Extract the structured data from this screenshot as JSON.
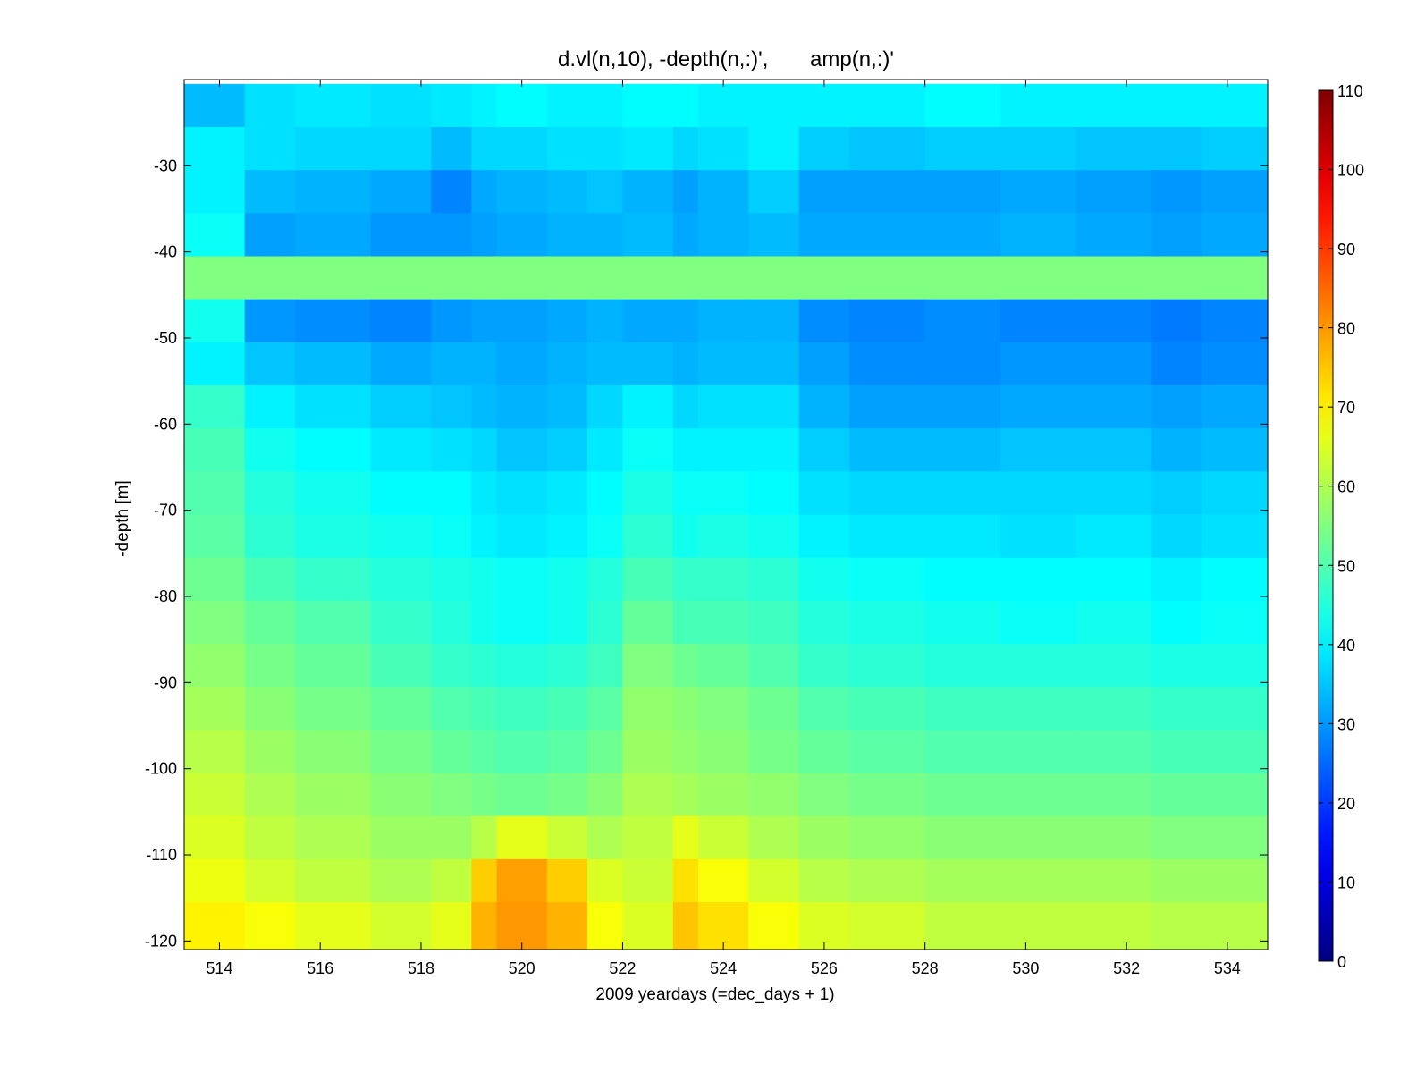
{
  "chart_data": {
    "type": "heatmap",
    "title": "d.vl(n,10), -depth(n,:)',       amp(n,:)'",
    "xlabel": "2009 yeardays (=dec_days + 1)",
    "ylabel": "-depth [m]",
    "xlim": [
      513.3,
      534.8
    ],
    "ylim": [
      -121,
      -20
    ],
    "x_ticks": [
      514,
      516,
      518,
      520,
      522,
      524,
      526,
      528,
      530,
      532,
      534
    ],
    "y_ticks": [
      -30,
      -40,
      -50,
      -60,
      -70,
      -80,
      -90,
      -100,
      -110,
      -120
    ],
    "colorbar": {
      "colormap": "jet",
      "range": [
        0,
        110
      ],
      "ticks": [
        0,
        10,
        20,
        30,
        40,
        50,
        60,
        70,
        80,
        90,
        100,
        110
      ]
    },
    "bins": {
      "top_depths": [
        -20.5,
        -25.5,
        -30.5,
        -35.5,
        -40.5,
        -45.5,
        -50.5,
        -55.5,
        -60.5,
        -65.5,
        -70.5,
        -75.5,
        -80.5,
        -85.5,
        -90.5,
        -95.5,
        -100.5,
        -105.5,
        -110.5,
        -115.5
      ],
      "bottom_depth": -121
    },
    "x_segments": [
      513.3,
      514.5,
      515.5,
      517,
      518.2,
      519,
      519.5,
      520.5,
      521.3,
      522,
      523,
      523.5,
      524.5,
      525.5,
      526.5,
      528,
      529.5,
      531,
      532.5,
      533.5,
      534.8
    ],
    "values": [
      [
        34,
        38,
        39,
        38,
        39,
        40,
        41,
        40,
        40,
        41,
        41,
        40,
        40,
        40,
        40,
        41,
        40,
        40,
        40,
        40
      ],
      [
        40,
        38,
        37,
        37,
        34,
        37,
        37,
        38,
        38,
        39,
        37,
        38,
        40,
        36,
        35,
        36,
        36,
        35,
        35,
        36
      ],
      [
        40,
        34,
        33,
        32,
        28,
        32,
        33,
        34,
        35,
        33,
        31,
        33,
        36,
        31,
        31,
        31,
        32,
        31,
        30,
        31
      ],
      [
        42,
        31,
        32,
        30,
        30,
        31,
        32,
        33,
        33,
        34,
        32,
        33,
        34,
        32,
        32,
        32,
        33,
        32,
        31,
        32
      ],
      [
        55,
        55,
        55,
        55,
        55,
        55,
        55,
        55,
        55,
        55,
        55,
        55,
        55,
        55,
        55,
        55,
        55,
        55,
        55,
        55
      ],
      [
        43,
        30,
        29,
        28,
        30,
        31,
        31,
        32,
        33,
        32,
        32,
        33,
        33,
        29,
        28,
        29,
        28,
        28,
        27,
        28
      ],
      [
        40,
        35,
        34,
        32,
        33,
        33,
        32,
        33,
        34,
        34,
        33,
        34,
        34,
        31,
        29,
        29,
        30,
        30,
        28,
        29
      ],
      [
        47,
        40,
        38,
        36,
        35,
        34,
        33,
        34,
        37,
        40,
        37,
        38,
        38,
        33,
        31,
        31,
        32,
        32,
        31,
        32
      ],
      [
        49,
        43,
        41,
        39,
        38,
        37,
        35,
        36,
        39,
        42,
        40,
        40,
        40,
        36,
        34,
        34,
        35,
        35,
        33,
        34
      ],
      [
        50,
        45,
        43,
        41,
        41,
        39,
        38,
        39,
        41,
        44,
        42,
        42,
        41,
        38,
        37,
        37,
        37,
        37,
        36,
        37
      ],
      [
        51,
        46,
        44,
        43,
        42,
        40,
        39,
        40,
        42,
        46,
        43,
        44,
        43,
        40,
        39,
        39,
        38,
        39,
        37,
        38
      ],
      [
        53,
        49,
        47,
        45,
        44,
        43,
        42,
        43,
        45,
        49,
        47,
        47,
        46,
        43,
        42,
        41,
        41,
        41,
        40,
        41
      ],
      [
        55,
        52,
        50,
        47,
        45,
        43,
        42,
        43,
        46,
        52,
        49,
        49,
        48,
        45,
        44,
        43,
        42,
        43,
        41,
        42
      ],
      [
        57,
        54,
        52,
        49,
        47,
        46,
        45,
        46,
        48,
        55,
        53,
        52,
        50,
        47,
        46,
        45,
        45,
        45,
        44,
        44
      ],
      [
        59,
        56,
        54,
        52,
        50,
        49,
        48,
        49,
        51,
        57,
        56,
        55,
        53,
        50,
        49,
        48,
        48,
        48,
        47,
        47
      ],
      [
        61,
        58,
        56,
        54,
        52,
        51,
        50,
        51,
        53,
        58,
        57,
        56,
        54,
        52,
        51,
        50,
        50,
        50,
        49,
        49
      ],
      [
        63,
        60,
        58,
        56,
        55,
        54,
        53,
        54,
        56,
        60,
        59,
        58,
        57,
        55,
        54,
        53,
        53,
        53,
        52,
        52
      ],
      [
        65,
        62,
        60,
        58,
        58,
        61,
        66,
        63,
        60,
        62,
        66,
        63,
        60,
        58,
        57,
        56,
        56,
        56,
        55,
        55
      ],
      [
        67,
        64,
        62,
        60,
        62,
        74,
        79,
        74,
        65,
        63,
        72,
        68,
        64,
        61,
        60,
        59,
        59,
        59,
        58,
        58
      ],
      [
        70,
        68,
        66,
        64,
        66,
        77,
        80,
        77,
        68,
        65,
        75,
        72,
        68,
        65,
        64,
        62,
        62,
        62,
        61,
        61
      ]
    ]
  }
}
